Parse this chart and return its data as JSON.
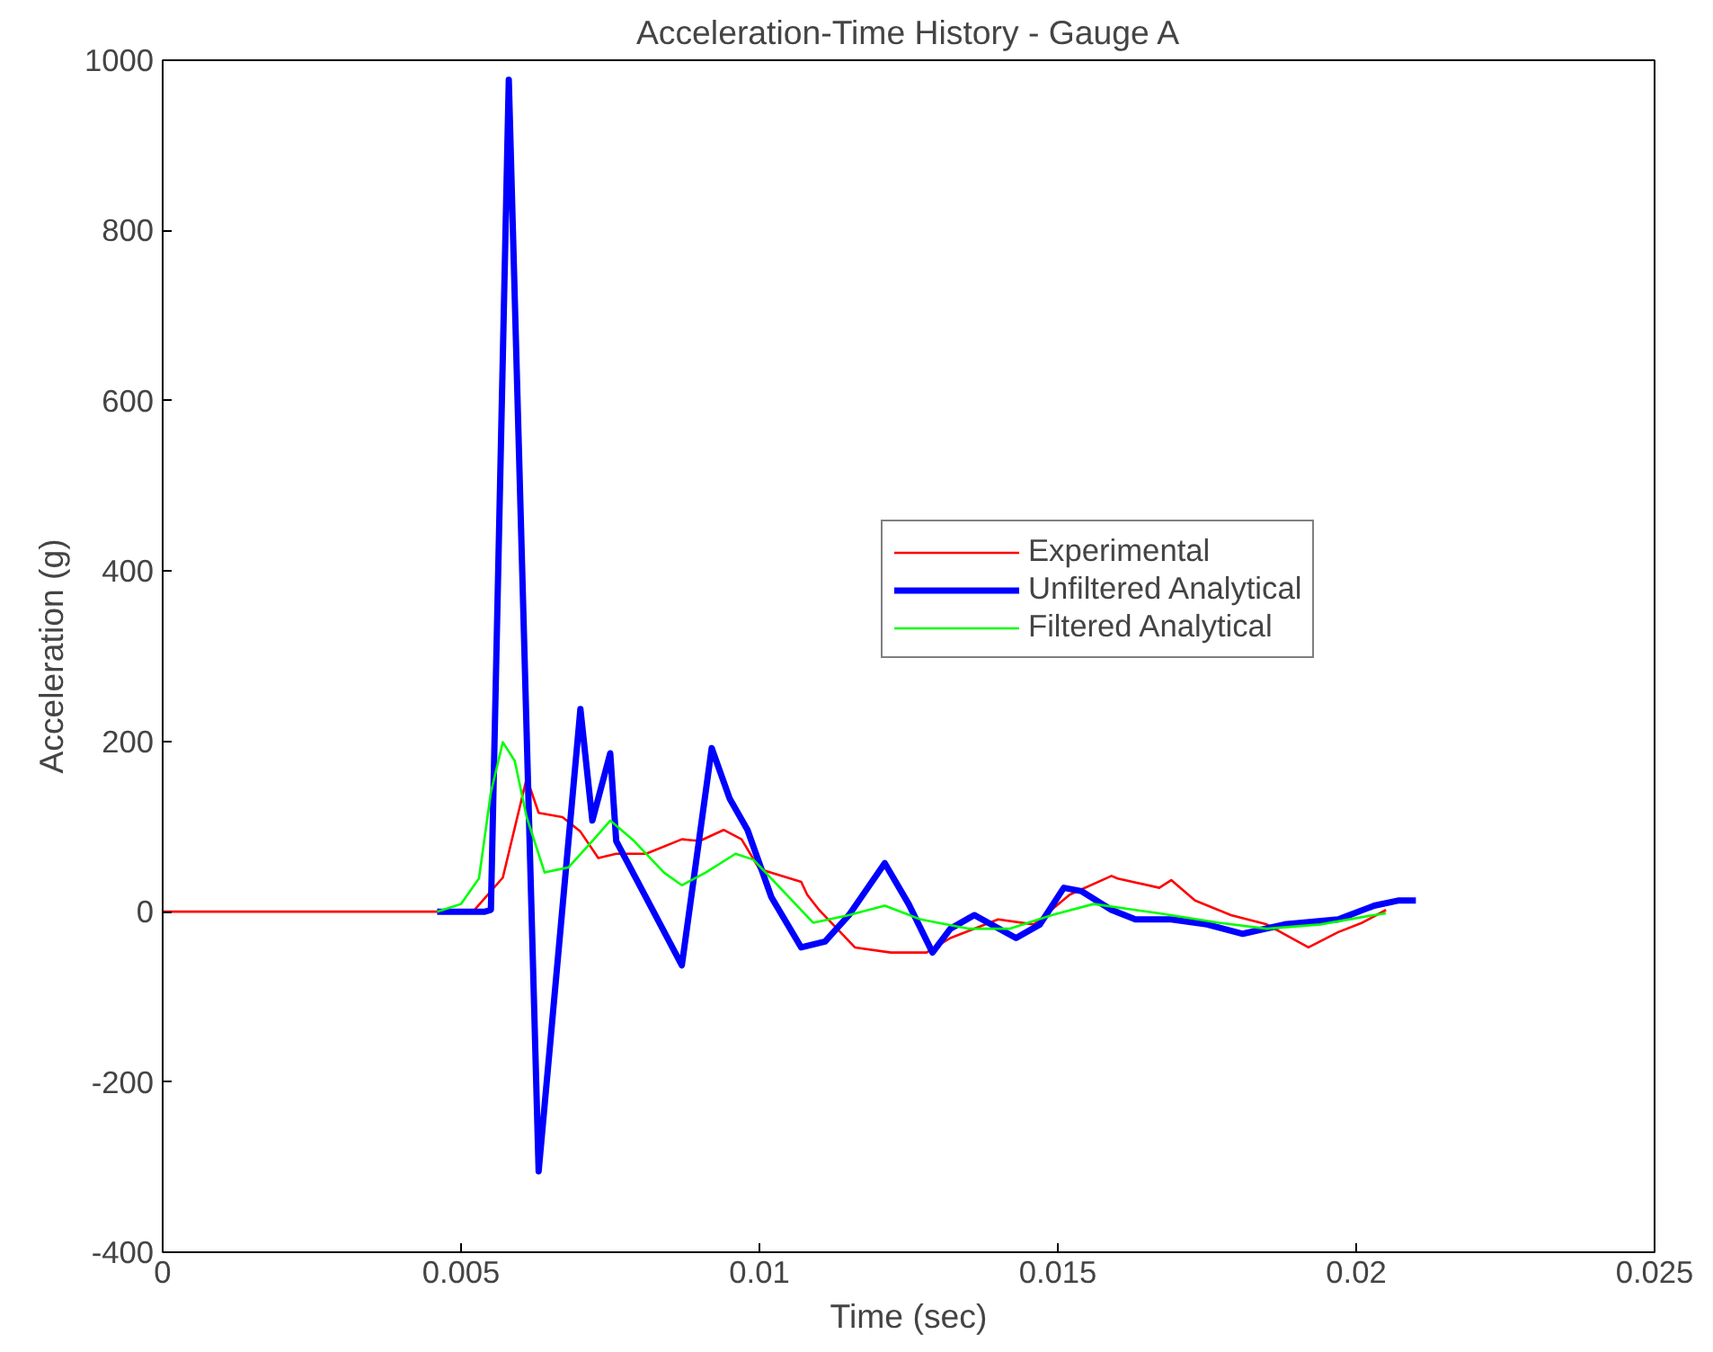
{
  "chart_data": {
    "type": "line",
    "title": "Acceleration-Time History - Gauge A",
    "xlabel": "Time (sec)",
    "ylabel": "Acceleration (g)",
    "xlim": [
      0,
      0.025
    ],
    "ylim": [
      -400,
      1000
    ],
    "xticks": [
      0,
      0.005,
      0.01,
      0.015,
      0.02,
      0.025
    ],
    "yticks": [
      -400,
      -200,
      0,
      200,
      400,
      600,
      800,
      1000
    ],
    "grid": false,
    "legend": "right",
    "series": [
      {
        "name": "Experimental",
        "color": "#ff0000",
        "x": [
          0,
          0.0052,
          0.0057,
          0.0061,
          0.0063,
          0.0067,
          0.007,
          0.0073,
          0.0076,
          0.0081,
          0.0087,
          0.009,
          0.0094,
          0.0097,
          0.01,
          0.0107,
          0.0108,
          0.011,
          0.0116,
          0.0122,
          0.0128,
          0.0132,
          0.014,
          0.0146,
          0.0152,
          0.0159,
          0.016,
          0.0167,
          0.0169,
          0.0173,
          0.0179,
          0.0185,
          0.0192,
          0.0197,
          0.0201,
          0.0205
        ],
        "values": [
          0,
          0,
          40,
          157,
          116,
          111,
          94,
          63,
          68,
          68,
          85,
          83,
          96,
          85,
          50,
          35,
          20,
          2,
          -42,
          -48,
          -48,
          -31,
          -9,
          -15,
          20,
          42,
          39,
          28,
          37,
          13,
          -4,
          -15,
          -42,
          -24,
          -13,
          2
        ]
      },
      {
        "name": "Unfiltered Analytical",
        "color": "#0000ff",
        "x": [
          0.0046,
          0.0054,
          0.0055,
          0.0058,
          0.0063,
          0.007,
          0.0072,
          0.0075,
          0.0076,
          0.0087,
          0.0092,
          0.0095,
          0.0098,
          0.0102,
          0.0107,
          0.0111,
          0.0115,
          0.0121,
          0.0125,
          0.0129,
          0.0132,
          0.0136,
          0.0143,
          0.0147,
          0.0151,
          0.0154,
          0.0159,
          0.0163,
          0.0169,
          0.0175,
          0.0181,
          0.0188,
          0.0197,
          0.0203,
          0.0207,
          0.021
        ],
        "values": [
          0,
          0,
          2,
          977,
          -305,
          238,
          107,
          186,
          83,
          -63,
          192,
          133,
          96,
          17,
          -42,
          -35,
          -4,
          57,
          9,
          -48,
          -20,
          -4,
          -31,
          -15,
          28,
          24,
          2,
          -9,
          -9,
          -15,
          -26,
          -15,
          -9,
          7,
          13,
          13
        ]
      },
      {
        "name": "Filtered Analytical",
        "color": "#00ff00",
        "x": [
          0.0046,
          0.005,
          0.0053,
          0.0055,
          0.0057,
          0.0059,
          0.0061,
          0.0064,
          0.0068,
          0.0072,
          0.0075,
          0.0079,
          0.0084,
          0.0087,
          0.0091,
          0.0096,
          0.0099,
          0.0104,
          0.0109,
          0.0115,
          0.0121,
          0.0127,
          0.0135,
          0.0142,
          0.0149,
          0.0156,
          0.0167,
          0.0177,
          0.0185,
          0.0194,
          0.0203,
          0.0205
        ],
        "values": [
          0,
          9,
          39,
          140,
          199,
          177,
          111,
          46,
          52,
          83,
          107,
          83,
          46,
          31,
          46,
          68,
          61,
          24,
          -13,
          -4,
          7,
          -9,
          -20,
          -20,
          -4,
          9,
          -2,
          -13,
          -20,
          -15,
          -4,
          -2
        ]
      }
    ]
  }
}
